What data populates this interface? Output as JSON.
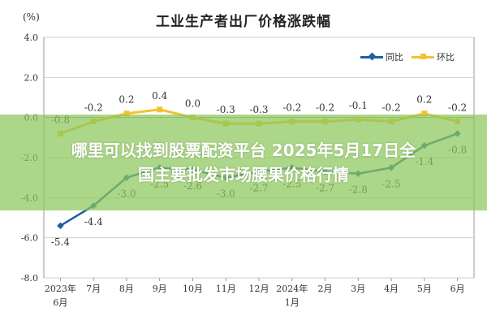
{
  "chart_data": {
    "type": "line",
    "title": "工业生产者出厂价格涨跌幅",
    "unit_label": "(%)",
    "categories": [
      [
        "2023年",
        "6月"
      ],
      [
        "7月"
      ],
      [
        "8月"
      ],
      [
        "9月"
      ],
      [
        "10月"
      ],
      [
        "11月"
      ],
      [
        "12月"
      ],
      [
        "2024年",
        "1月"
      ],
      [
        "2月"
      ],
      [
        "3月"
      ],
      [
        "4月"
      ],
      [
        "5月"
      ],
      [
        "6月"
      ]
    ],
    "ylim": [
      -8.0,
      4.0
    ],
    "yticks": [
      "4.0",
      "2.0",
      "0.0",
      "-2.0",
      "-4.0",
      "-6.0",
      "-8.0"
    ],
    "grid": true,
    "legend_position": "top-right",
    "series": [
      {
        "name": "同比",
        "color": "#1f5fa8",
        "marker": "diamond",
        "values": [
          -5.4,
          -4.4,
          -3.0,
          -2.5,
          -2.6,
          -3.0,
          -2.7,
          -2.5,
          -2.7,
          -2.8,
          -2.5,
          -1.4,
          -0.8
        ],
        "labels": [
          "-5.4",
          "-4.4",
          "-3.0",
          "-2.5",
          "-2.6",
          "-3.0",
          "-2.7",
          "-2.5",
          "-2.7",
          "-2.8",
          "-2.5",
          "-1.4",
          "-0.8"
        ]
      },
      {
        "name": "环比",
        "color": "#f2c230",
        "marker": "square",
        "values": [
          -0.8,
          -0.2,
          0.2,
          0.4,
          0.0,
          -0.3,
          -0.3,
          -0.2,
          -0.2,
          -0.1,
          -0.2,
          0.2,
          -0.2
        ],
        "labels": [
          "-0.8",
          "-0.2",
          "0.2",
          "0.4",
          "0.0",
          "-0.3",
          "-0.3",
          "-0.2",
          "-0.2",
          "-0.1",
          "-0.2",
          "0.2",
          "-0.2"
        ]
      }
    ]
  },
  "overlay": {
    "line1": "哪里可以找到股票配资平台 2025年5月17日全",
    "line2": "国主要批发市场腰果价格行情"
  }
}
